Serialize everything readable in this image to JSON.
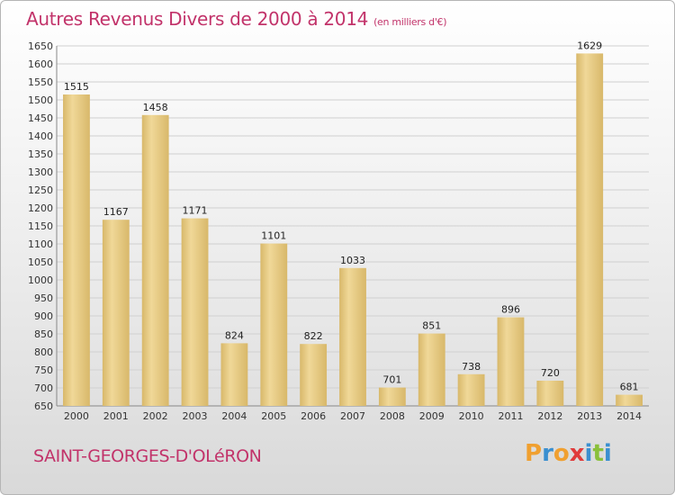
{
  "header": {
    "title": "Autres Revenus Divers de 2000 à 2014",
    "unit": "(en milliers d'€)"
  },
  "footer": {
    "commune": "SAINT-GEORGES-D'OLéRON",
    "logo_letters": [
      "P",
      "r",
      "o",
      "x",
      "i",
      "t",
      "i"
    ],
    "logo_colors": [
      "#f0a030",
      "#3a8fd0",
      "#f0a030",
      "#e03a3a",
      "#3a8fd0",
      "#8ac03a",
      "#3a8fd0"
    ]
  },
  "colors": {
    "bar": "#f0d898",
    "bar_dark": "#d8b86a",
    "title": "#c2336a",
    "grid": "#d0d0d0"
  },
  "chart_data": {
    "type": "bar",
    "title": "Autres Revenus Divers de 2000 à 2014",
    "categories": [
      "2000",
      "2001",
      "2002",
      "2003",
      "2004",
      "2005",
      "2006",
      "2007",
      "2008",
      "2009",
      "2010",
      "2011",
      "2012",
      "2013",
      "2014"
    ],
    "values": [
      1515,
      1167,
      1458,
      1171,
      824,
      1101,
      822,
      1033,
      701,
      851,
      738,
      896,
      720,
      1629,
      681
    ],
    "ylim": [
      650,
      1650
    ],
    "yticks": [
      650,
      700,
      750,
      800,
      850,
      900,
      950,
      1000,
      1050,
      1100,
      1150,
      1200,
      1250,
      1300,
      1350,
      1400,
      1450,
      1500,
      1550,
      1600,
      1650
    ],
    "grid": true
  }
}
